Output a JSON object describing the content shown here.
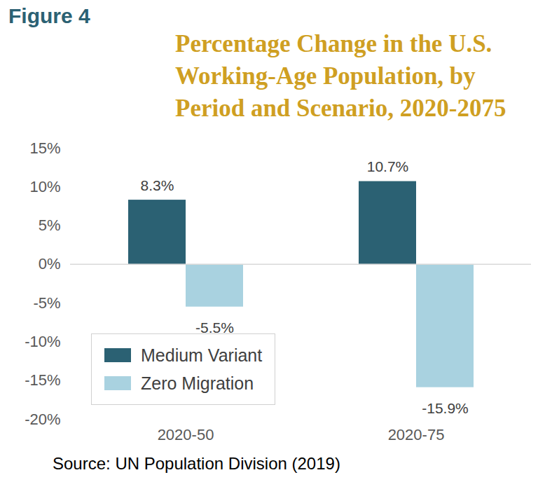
{
  "chart_data": {
    "type": "bar",
    "figure": "Figure 4",
    "title": "Percentage Change in the U.S. Working-Age Population, by Period and Scenario, 2020-2075",
    "source": "Source: UN Population Division (2019)",
    "categories": [
      "2020-50",
      "2020-75"
    ],
    "series": [
      {
        "name": "Medium Variant",
        "color": "#2b6173",
        "values": [
          8.3,
          10.7
        ],
        "value_labels": [
          "8.3%",
          "10.7%"
        ]
      },
      {
        "name": "Zero Migration",
        "color": "#a9d2e0",
        "values": [
          -5.5,
          -15.9
        ],
        "value_labels": [
          "-5.5%",
          "-15.9%"
        ]
      }
    ],
    "ylim": [
      -20,
      15
    ],
    "yticks": [
      {
        "value": -20,
        "label": "-20%"
      },
      {
        "value": -15,
        "label": "-15%"
      },
      {
        "value": -10,
        "label": "-10%"
      },
      {
        "value": -5,
        "label": "-5%"
      },
      {
        "value": 0,
        "label": "0%"
      },
      {
        "value": 5,
        "label": "5%"
      },
      {
        "value": 10,
        "label": "10%"
      },
      {
        "value": 15,
        "label": "15%"
      }
    ],
    "grid": false,
    "legend": "bottom-left",
    "data_labels": true
  }
}
